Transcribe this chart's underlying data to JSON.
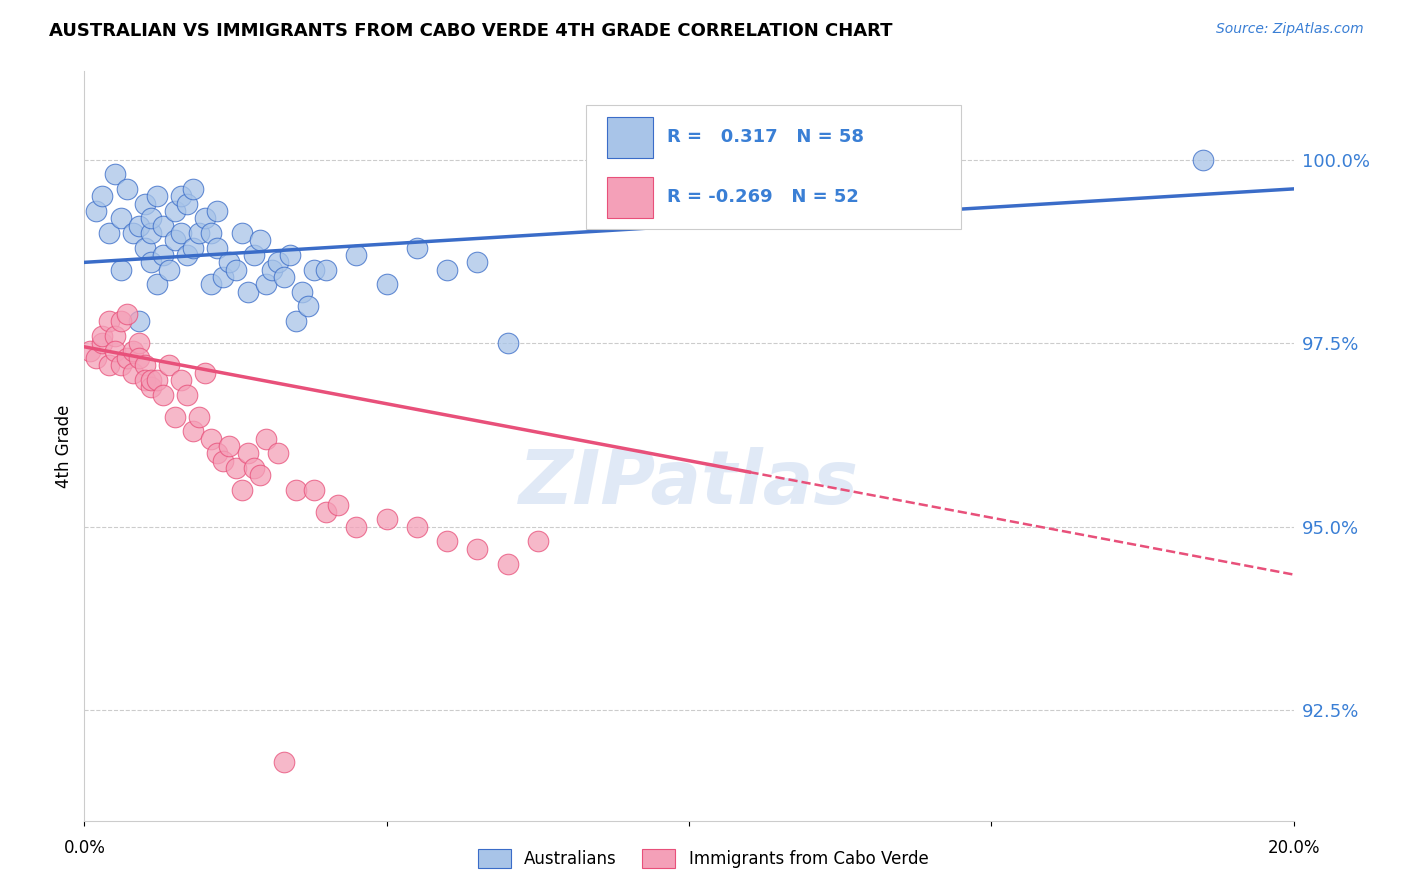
{
  "title": "AUSTRALIAN VS IMMIGRANTS FROM CABO VERDE 4TH GRADE CORRELATION CHART",
  "source": "Source: ZipAtlas.com",
  "ylabel": "4th Grade",
  "ytick_labels": [
    "92.5%",
    "95.0%",
    "97.5%",
    "100.0%"
  ],
  "ytick_values": [
    92.5,
    95.0,
    97.5,
    100.0
  ],
  "xmin": 0.0,
  "xmax": 20.0,
  "ymin": 91.0,
  "ymax": 101.2,
  "legend_items": [
    "Australians",
    "Immigrants from Cabo Verde"
  ],
  "R_australian": 0.317,
  "N_australian": 58,
  "R_caboverde": -0.269,
  "N_caboverde": 52,
  "australian_color": "#a8c4e8",
  "caboverde_color": "#f4a0b8",
  "australian_line_color": "#3a6cc8",
  "caboverde_line_color": "#e8507a",
  "watermark": "ZIPatlas",
  "watermark_color": "#c8d8f0",
  "aus_trend_x0": 0.0,
  "aus_trend_y0": 98.6,
  "aus_trend_x1": 20.0,
  "aus_trend_y1": 99.6,
  "cv_trend_x0": 0.0,
  "cv_trend_y0": 97.45,
  "cv_trend_x1": 20.0,
  "cv_trend_y1": 94.35,
  "cv_solid_xend": 11.0,
  "australian_x": [
    0.2,
    0.3,
    0.4,
    0.5,
    0.6,
    0.6,
    0.7,
    0.8,
    0.9,
    0.9,
    1.0,
    1.0,
    1.1,
    1.1,
    1.1,
    1.2,
    1.2,
    1.3,
    1.3,
    1.4,
    1.5,
    1.5,
    1.6,
    1.6,
    1.7,
    1.7,
    1.8,
    1.8,
    1.9,
    2.0,
    2.1,
    2.1,
    2.2,
    2.2,
    2.3,
    2.4,
    2.5,
    2.6,
    2.7,
    2.8,
    2.9,
    3.0,
    3.1,
    3.2,
    3.3,
    3.4,
    3.5,
    3.6,
    3.7,
    3.8,
    4.0,
    4.5,
    5.0,
    5.5,
    6.0,
    6.5,
    7.0,
    18.5
  ],
  "australian_y": [
    99.3,
    99.5,
    99.0,
    99.8,
    98.5,
    99.2,
    99.6,
    99.0,
    97.8,
    99.1,
    98.8,
    99.4,
    99.0,
    98.6,
    99.2,
    99.5,
    98.3,
    99.1,
    98.7,
    98.5,
    99.3,
    98.9,
    99.5,
    99.0,
    98.7,
    99.4,
    99.6,
    98.8,
    99.0,
    99.2,
    98.3,
    99.0,
    98.8,
    99.3,
    98.4,
    98.6,
    98.5,
    99.0,
    98.2,
    98.7,
    98.9,
    98.3,
    98.5,
    98.6,
    98.4,
    98.7,
    97.8,
    98.2,
    98.0,
    98.5,
    98.5,
    98.7,
    98.3,
    98.8,
    98.5,
    98.6,
    97.5,
    100.0
  ],
  "caboverde_x": [
    0.1,
    0.2,
    0.3,
    0.3,
    0.4,
    0.4,
    0.5,
    0.5,
    0.6,
    0.6,
    0.7,
    0.7,
    0.8,
    0.8,
    0.9,
    0.9,
    1.0,
    1.0,
    1.1,
    1.1,
    1.2,
    1.3,
    1.4,
    1.5,
    1.6,
    1.7,
    1.8,
    1.9,
    2.0,
    2.1,
    2.2,
    2.3,
    2.4,
    2.5,
    2.6,
    2.7,
    2.8,
    2.9,
    3.0,
    3.5,
    4.0,
    4.5,
    5.0,
    5.5,
    6.0,
    6.5,
    7.0,
    3.2,
    3.8,
    4.2,
    7.5,
    3.3
  ],
  "caboverde_y": [
    97.4,
    97.3,
    97.5,
    97.6,
    97.8,
    97.2,
    97.6,
    97.4,
    97.2,
    97.8,
    97.9,
    97.3,
    97.4,
    97.1,
    97.5,
    97.3,
    97.2,
    97.0,
    96.9,
    97.0,
    97.0,
    96.8,
    97.2,
    96.5,
    97.0,
    96.8,
    96.3,
    96.5,
    97.1,
    96.2,
    96.0,
    95.9,
    96.1,
    95.8,
    95.5,
    96.0,
    95.8,
    95.7,
    96.2,
    95.5,
    95.2,
    95.0,
    95.1,
    95.0,
    94.8,
    94.7,
    94.5,
    96.0,
    95.5,
    95.3,
    94.8,
    91.8
  ]
}
